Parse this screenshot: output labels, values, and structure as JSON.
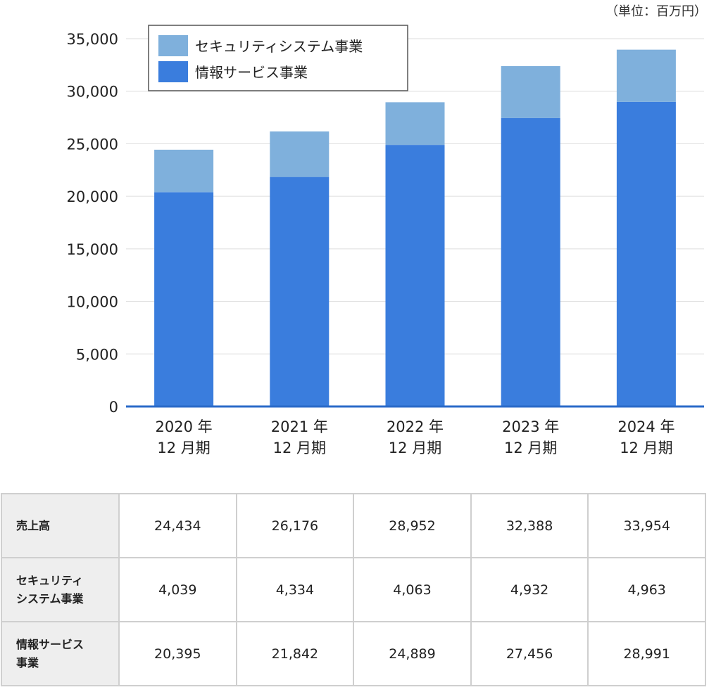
{
  "unit_label": "（単位：百万円）",
  "chart_data": {
    "type": "bar",
    "stacked": true,
    "title": "",
    "xlabel": "",
    "ylabel": "",
    "ylim": [
      0,
      35000
    ],
    "yticks": [
      0,
      5000,
      10000,
      15000,
      20000,
      25000,
      30000,
      35000
    ],
    "ytick_labels": [
      "0",
      "5,000",
      "10,000",
      "15,000",
      "20,000",
      "25,000",
      "30,000",
      "35,000"
    ],
    "grid": true,
    "legend_position": "top-left",
    "categories": [
      {
        "year": "2020 年",
        "period": "12 月期"
      },
      {
        "year": "2021 年",
        "period": "12 月期"
      },
      {
        "year": "2022 年",
        "period": "12 月期"
      },
      {
        "year": "2023 年",
        "period": "12 月期"
      },
      {
        "year": "2024 年",
        "period": "12 月期"
      }
    ],
    "series": [
      {
        "name": "情報サービス事業",
        "color": "#3a7ddd",
        "values": [
          20395,
          21842,
          24889,
          27456,
          28991
        ]
      },
      {
        "name": "セキュリティシステム事業",
        "color": "#7fb0dc",
        "values": [
          4039,
          4334,
          4063,
          4932,
          4963
        ]
      }
    ],
    "legend": [
      {
        "name": "セキュリティシステム事業",
        "color": "#7fb0dc"
      },
      {
        "name": "情報サービス事業",
        "color": "#3a7ddd"
      }
    ]
  },
  "table": {
    "rows": [
      {
        "label_lines": [
          "売上高"
        ],
        "values": [
          "24,434",
          "26,176",
          "28,952",
          "32,388",
          "33,954"
        ]
      },
      {
        "label_lines": [
          "セキュリティ",
          "システム事業"
        ],
        "values": [
          "4,039",
          "4,334",
          "4,063",
          "4,932",
          "4,963"
        ]
      },
      {
        "label_lines": [
          "情報サービス",
          "事業"
        ],
        "values": [
          "20,395",
          "21,842",
          "24,889",
          "27,456",
          "28,991"
        ]
      }
    ]
  }
}
